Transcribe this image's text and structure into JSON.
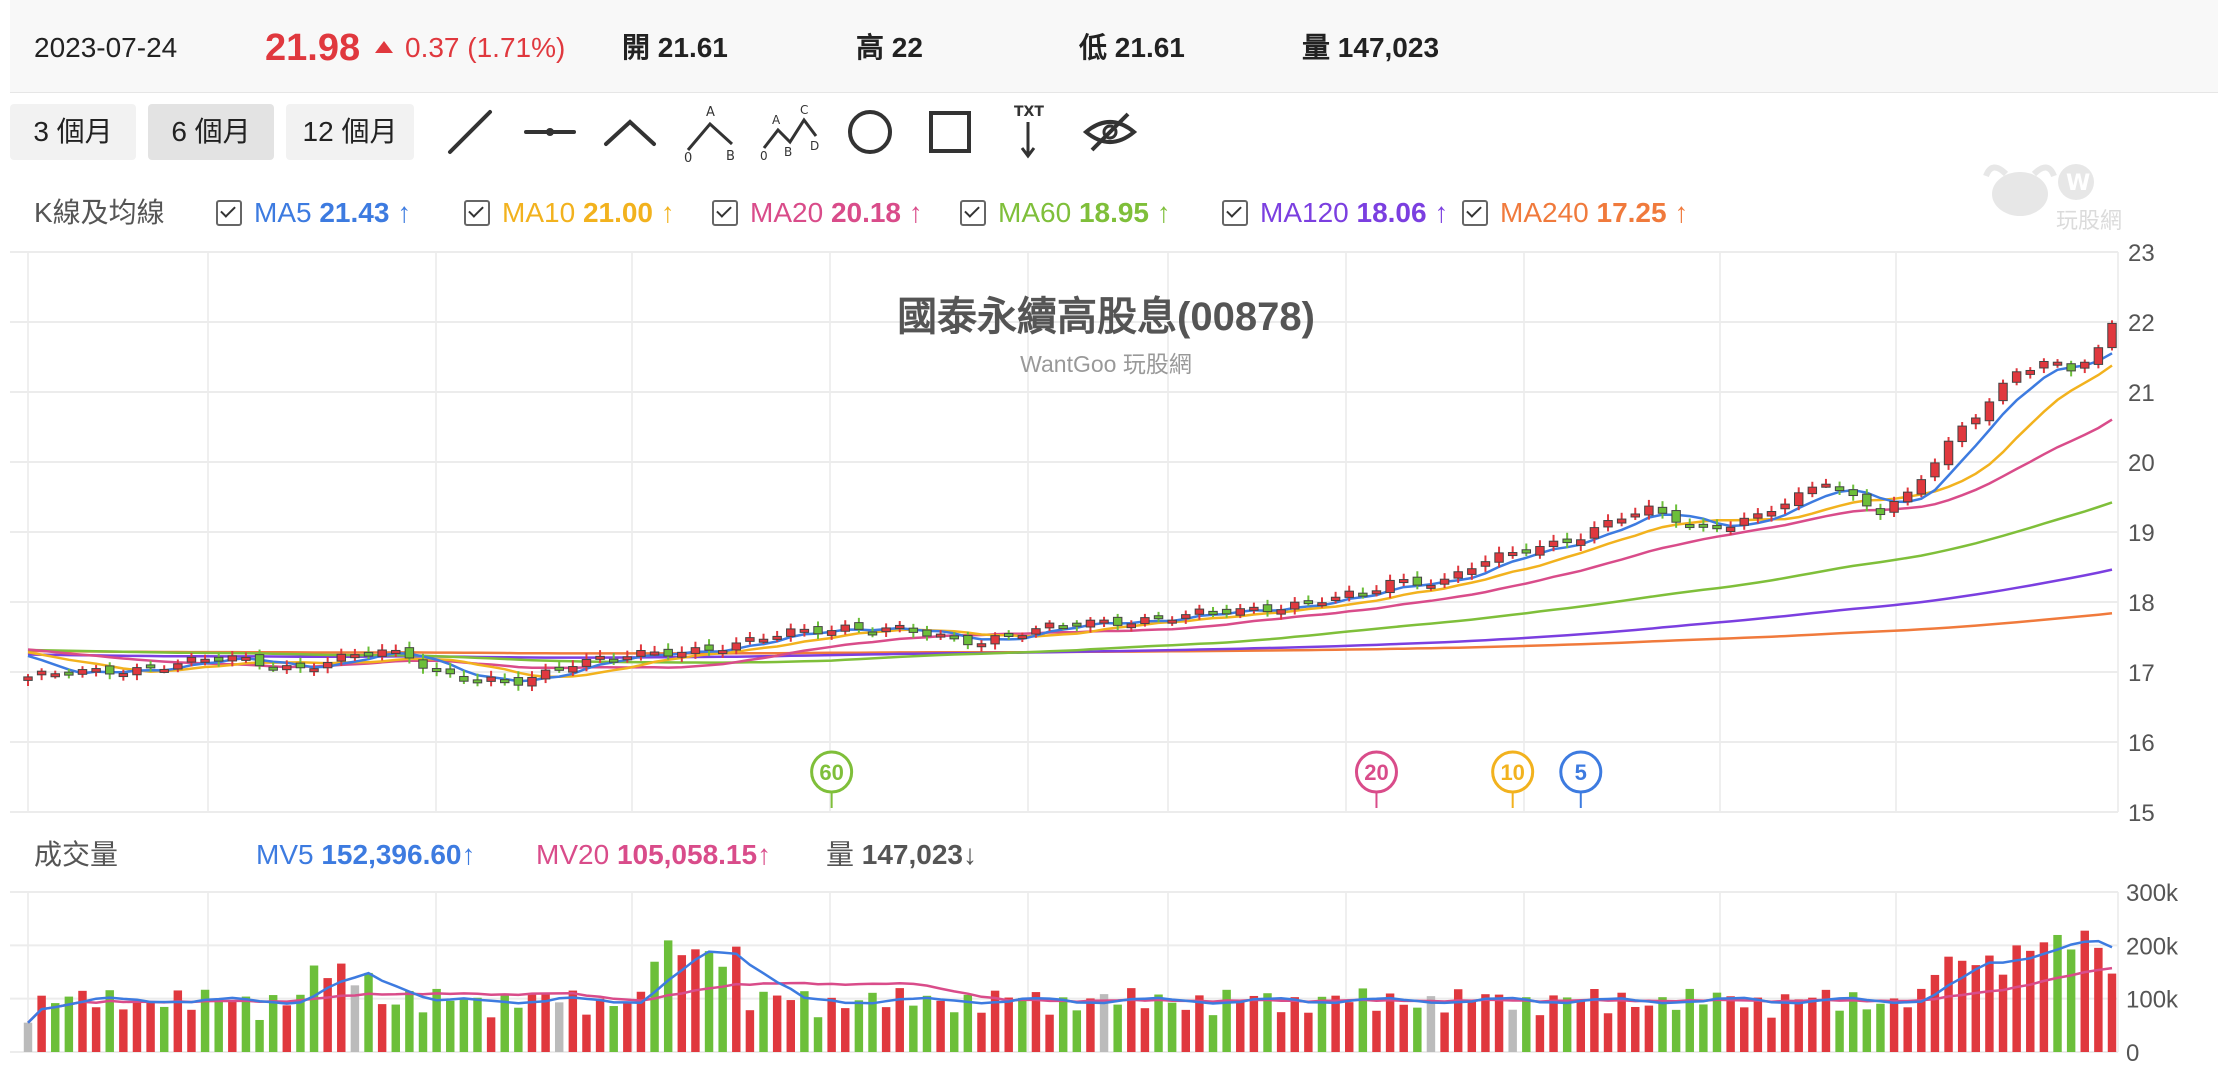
{
  "quote": {
    "date": "2023-07-24",
    "price": "21.98",
    "change": "0.37 (1.71%)",
    "open_label": "開",
    "open": "21.61",
    "high_label": "高",
    "high": "22",
    "low_label": "低",
    "low": "21.61",
    "vol_label": "量",
    "volume": "147,023"
  },
  "ranges": [
    {
      "label": "3 個月",
      "active": false
    },
    {
      "label": "6 個月",
      "active": true
    },
    {
      "label": "12 個月",
      "active": false
    }
  ],
  "tools": [
    "line-tool-icon",
    "horizontal-line-tool-icon",
    "angle-tool-icon",
    "abc-pattern-tool-icon",
    "abcd-pattern-tool-icon",
    "circle-tool-icon",
    "rectangle-tool-icon",
    "text-tool-icon",
    "hide-drawings-icon"
  ],
  "ma_section": {
    "label": "K線及均線",
    "items": [
      {
        "name": "MA5",
        "value": "21.43",
        "color": "#3d7be0"
      },
      {
        "name": "MA10",
        "value": "21.00",
        "color": "#f2b21e"
      },
      {
        "name": "MA20",
        "value": "20.18",
        "color": "#d94c8a"
      },
      {
        "name": "MA60",
        "value": "18.95",
        "color": "#7fbf3a"
      },
      {
        "name": "MA120",
        "value": "18.06",
        "color": "#7b3fe0"
      },
      {
        "name": "MA240",
        "value": "17.25",
        "color": "#f07a3c"
      }
    ]
  },
  "vol_section": {
    "label": "成交量",
    "items": [
      {
        "name": "MV5",
        "value": "152,396.60",
        "color": "#3d7be0",
        "dir": "up"
      },
      {
        "name": "MV20",
        "value": "105,058.15",
        "color": "#d94c8a",
        "dir": "up"
      },
      {
        "name": "量",
        "value": "147,023",
        "color": "#555555",
        "dir": "down"
      }
    ]
  },
  "watermark": "玩股網",
  "chart_data": {
    "type": "candlestick",
    "title": "國泰永續高股息(00878)",
    "subtitle": "WantGoo 玩股網",
    "price_axis": {
      "ticks": [
        "23",
        "22",
        "21",
        "20",
        "19",
        "18",
        "17",
        "16",
        "15"
      ],
      "range": [
        15,
        23
      ]
    },
    "volume_axis": {
      "ticks": [
        "300k",
        "200k",
        "100k",
        "0"
      ],
      "range": [
        0,
        300000
      ]
    },
    "grid": true,
    "colors": {
      "up": "#e0383e",
      "down": "#6cbf3a",
      "flat": "#bbbbbb"
    },
    "price_keypoints": [
      [
        0,
        16.93
      ],
      [
        8,
        17.05
      ],
      [
        15,
        17.2
      ],
      [
        20,
        17.05
      ],
      [
        26,
        17.3
      ],
      [
        28,
        17.25
      ],
      [
        30,
        17.0
      ],
      [
        33,
        16.85
      ],
      [
        36,
        16.85
      ],
      [
        40,
        17.15
      ],
      [
        46,
        17.25
      ],
      [
        52,
        17.4
      ],
      [
        56,
        17.55
      ],
      [
        60,
        17.65
      ],
      [
        64,
        17.6
      ],
      [
        68,
        17.45
      ],
      [
        70,
        17.45
      ],
      [
        72,
        17.55
      ],
      [
        78,
        17.7
      ],
      [
        85,
        17.8
      ],
      [
        90,
        17.9
      ],
      [
        94,
        18.0
      ],
      [
        98,
        18.1
      ],
      [
        100,
        18.3
      ],
      [
        104,
        18.3
      ],
      [
        106,
        18.5
      ],
      [
        110,
        18.75
      ],
      [
        114,
        18.95
      ],
      [
        117,
        19.2
      ],
      [
        119,
        19.3
      ],
      [
        121,
        19.2
      ],
      [
        123,
        19.05
      ],
      [
        127,
        19.2
      ],
      [
        130,
        19.5
      ],
      [
        132,
        19.75
      ],
      [
        134,
        19.5
      ],
      [
        136,
        19.3
      ],
      [
        138,
        19.5
      ],
      [
        140,
        20.0
      ],
      [
        142,
        20.5
      ],
      [
        144,
        20.9
      ],
      [
        146,
        21.3
      ],
      [
        148,
        21.4
      ],
      [
        150,
        21.3
      ],
      [
        152,
        21.6
      ],
      [
        153,
        21.98
      ]
    ],
    "markers": [
      {
        "label": "60",
        "index": 59,
        "color": "#7fbf3a"
      },
      {
        "label": "20",
        "index": 99,
        "color": "#d94c8a"
      },
      {
        "label": "10",
        "index": 109,
        "color": "#f2b21e"
      },
      {
        "label": "5",
        "index": 114,
        "color": "#3d7be0"
      }
    ]
  }
}
